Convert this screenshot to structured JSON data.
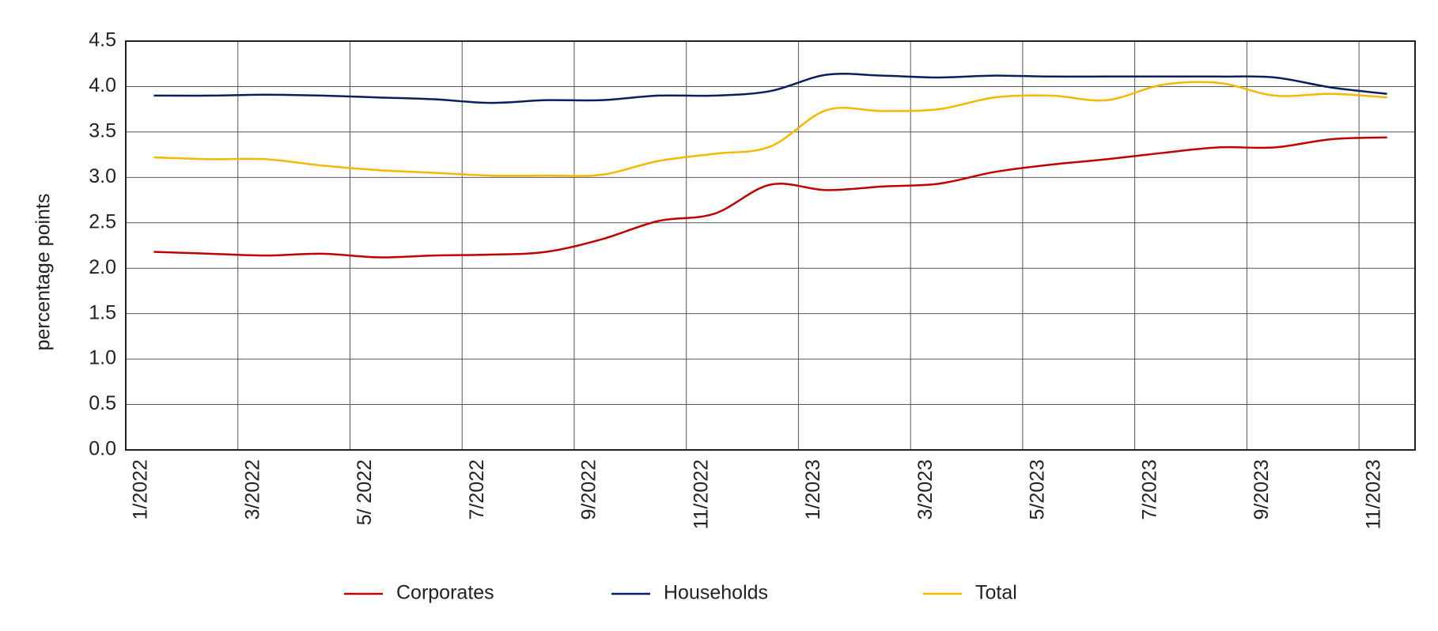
{
  "chart_data": {
    "type": "line",
    "y_label": "percentage points",
    "categories": [
      "1/2022",
      null,
      "3/2022",
      null,
      "5/ 2022",
      null,
      "7/2022",
      null,
      "9/2022",
      null,
      "11/2022",
      null,
      "1/2023",
      null,
      "3/2023",
      null,
      "5/2023",
      null,
      "7/2023",
      null,
      "9/2023",
      null,
      "11/2023"
    ],
    "series": [
      {
        "name": "Corporates",
        "color": "#c00000",
        "values": [
          2.18,
          2.16,
          2.14,
          2.16,
          2.12,
          2.14,
          2.15,
          2.18,
          2.32,
          2.52,
          2.6,
          2.92,
          2.86,
          2.9,
          2.93,
          3.06,
          3.14,
          3.2,
          3.27,
          3.33,
          3.33,
          3.42,
          3.44
        ]
      },
      {
        "name": "Households",
        "color": "#0a1f5c",
        "values": [
          3.9,
          3.9,
          3.91,
          3.9,
          3.88,
          3.86,
          3.82,
          3.85,
          3.85,
          3.9,
          3.9,
          3.95,
          4.13,
          4.12,
          4.1,
          4.12,
          4.11,
          4.11,
          4.11,
          4.11,
          4.1,
          3.99,
          3.92
        ]
      },
      {
        "name": "Total",
        "color": "#f5b800",
        "values": [
          3.22,
          3.2,
          3.2,
          3.13,
          3.08,
          3.05,
          3.02,
          3.02,
          3.03,
          3.18,
          3.26,
          3.34,
          3.74,
          3.73,
          3.75,
          3.88,
          3.9,
          3.85,
          4.02,
          4.04,
          3.9,
          3.92,
          3.88
        ]
      }
    ],
    "ylim": [
      0,
      4.5
    ],
    "yticks": [
      {
        "value": 0,
        "label": "0.0"
      },
      0.5,
      {
        "value": 1,
        "label": "1.0"
      },
      1.5,
      {
        "value": 2,
        "label": "2.0"
      },
      2.5,
      {
        "value": 3,
        "label": "3.0"
      },
      3.5,
      {
        "value": 4,
        "label": "4.0"
      },
      4.5
    ],
    "grid": true,
    "legend": "bottom"
  }
}
